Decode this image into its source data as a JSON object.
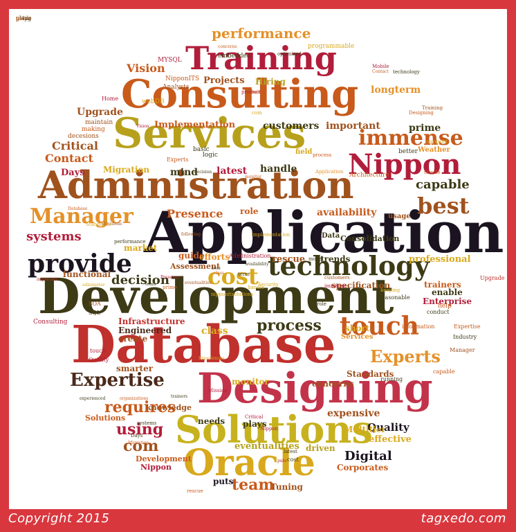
{
  "footer": {
    "copyright": "Copyright 2015",
    "brand": "tagxedo.com"
  },
  "colors": {
    "frame": "#d9373e",
    "canvas": "#ffffff"
  },
  "words": [
    {
      "t": "performance",
      "c": "#e4912a"
    },
    {
      "t": "Training",
      "c": "#b11d3a"
    },
    {
      "t": "Consulting",
      "c": "#c85a1b"
    },
    {
      "t": "Services",
      "c": "#b7a11c"
    },
    {
      "t": "Administration",
      "c": "#a0521d"
    },
    {
      "t": "Application",
      "c": "#1b1420"
    },
    {
      "t": "Development",
      "c": "#3d3a16"
    },
    {
      "t": "Database",
      "c": "#c0302c"
    },
    {
      "t": "Designing",
      "c": "#c2334a"
    },
    {
      "t": "Solutions",
      "c": "#c7b21e"
    },
    {
      "t": "Oracle",
      "c": "#d8a91c"
    },
    {
      "t": "technology",
      "c": "#3d3a16"
    },
    {
      "t": "touch",
      "c": "#c85a1b"
    },
    {
      "t": "Nippon",
      "c": "#b11d3a"
    },
    {
      "t": "immense",
      "c": "#c85a1b"
    },
    {
      "t": "best",
      "c": "#a0521d"
    },
    {
      "t": "capable",
      "c": "#3d3a16"
    },
    {
      "t": "Manager",
      "c": "#e4912a"
    },
    {
      "t": "provide",
      "c": "#1b1420"
    },
    {
      "t": "cost",
      "c": "#d8a91c"
    },
    {
      "t": "Expertise",
      "c": "#4a2a1a"
    },
    {
      "t": "requires",
      "c": "#c85a1b"
    },
    {
      "t": "using",
      "c": "#b11d3a"
    },
    {
      "t": "com",
      "c": "#a0521d"
    },
    {
      "t": "team",
      "c": "#c85a1b"
    },
    {
      "t": "Experts",
      "c": "#e4912a"
    },
    {
      "t": "process",
      "c": "#3d3a16"
    },
    {
      "t": "systems",
      "c": "#b11d3a"
    },
    {
      "t": "decision",
      "c": "#3d3a16"
    },
    {
      "t": "Presence",
      "c": "#c85a1b"
    },
    {
      "t": "availability",
      "c": "#c85a1b"
    },
    {
      "t": "Vision",
      "c": "#c85a1b"
    },
    {
      "t": "Projects",
      "c": "#a0521d"
    },
    {
      "t": "Hiring",
      "c": "#b7a11c"
    },
    {
      "t": "longterm",
      "c": "#e4912a"
    },
    {
      "t": "customers",
      "c": "#3d3a16"
    },
    {
      "t": "important",
      "c": "#a0521d"
    },
    {
      "t": "prime",
      "c": "#3d3a16"
    },
    {
      "t": "Upgrade",
      "c": "#a0521d"
    },
    {
      "t": "Implementation",
      "c": "#c85a1b"
    },
    {
      "t": "Critical",
      "c": "#a0521d"
    },
    {
      "t": "Contact",
      "c": "#c85a1b"
    },
    {
      "t": "Migration",
      "c": "#d8a91c"
    },
    {
      "t": "mind",
      "c": "#3d3a16"
    },
    {
      "t": "latest",
      "c": "#b11d3a"
    },
    {
      "t": "handle",
      "c": "#3d3a16"
    },
    {
      "t": "Days",
      "c": "#b11d3a"
    },
    {
      "t": "role",
      "c": "#c85a1b"
    },
    {
      "t": "market",
      "c": "#d8a91c"
    },
    {
      "t": "trends",
      "c": "#3d3a16"
    },
    {
      "t": "rescue",
      "c": "#a0521d"
    },
    {
      "t": "professional",
      "c": "#d8a91c"
    },
    {
      "t": "guide",
      "c": "#c85a1b"
    },
    {
      "t": "efforts",
      "c": "#e4912a"
    },
    {
      "t": "Consolidation",
      "c": "#3d3a16"
    },
    {
      "t": "Assessment",
      "c": "#a0521d"
    },
    {
      "t": "functional",
      "c": "#a0521d"
    },
    {
      "t": "trainers",
      "c": "#c85a1b"
    },
    {
      "t": "Enterprise",
      "c": "#b11d3a"
    },
    {
      "t": "enable",
      "c": "#3d3a16"
    },
    {
      "t": "specification",
      "c": "#a0521d"
    },
    {
      "t": "Infrastructure",
      "c": "#c0302c"
    },
    {
      "t": "Engineered",
      "c": "#4a2a1a"
    },
    {
      "t": "class",
      "c": "#d8a91c"
    },
    {
      "t": "short",
      "c": "#d8a91c"
    },
    {
      "t": "Services",
      "c": "#e4912a"
    },
    {
      "t": "Standards",
      "c": "#a0521d"
    },
    {
      "t": "monitor",
      "c": "#d8a91c"
    },
    {
      "t": "concerns",
      "c": "#a0521d"
    },
    {
      "t": "Quality",
      "c": "#1b1420"
    },
    {
      "t": "Digital",
      "c": "#1b1420"
    },
    {
      "t": "Multitier",
      "c": "#d8a91c"
    },
    {
      "t": "expensive",
      "c": "#a0521d"
    },
    {
      "t": "effective",
      "c": "#d8a91c"
    },
    {
      "t": "eventualities",
      "c": "#b7a11c"
    },
    {
      "t": "driven",
      "c": "#b7a11c"
    },
    {
      "t": "Corporates",
      "c": "#c85a1b"
    },
    {
      "t": "needs",
      "c": "#3d3a16"
    },
    {
      "t": "plays",
      "c": "#3d3a16"
    },
    {
      "t": "Tuning",
      "c": "#a0521d"
    },
    {
      "t": "puts",
      "c": "#1b1420"
    },
    {
      "t": "create",
      "c": "#a0521d"
    },
    {
      "t": "smarter",
      "c": "#a0521d"
    },
    {
      "t": "knowledge",
      "c": "#a0521d"
    },
    {
      "t": "Solutions",
      "c": "#c85a1b"
    },
    {
      "t": "Development",
      "c": "#c85a1b"
    },
    {
      "t": "Nippon",
      "c": "#b11d3a"
    },
    {
      "t": "Consulting",
      "c": "#b11d3a"
    },
    {
      "t": "Architecture",
      "c": "#c85a1b"
    },
    {
      "t": "usage",
      "c": "#a0521d"
    },
    {
      "t": "Data",
      "c": "#3d3a16"
    },
    {
      "t": "MYSQL",
      "c": "#b11d3a"
    },
    {
      "t": "NipponITS",
      "c": "#c85a1b"
    },
    {
      "t": "Analysts",
      "c": "#a0521d"
    },
    {
      "t": "webDB",
      "c": "#d8a91c"
    },
    {
      "t": "Home",
      "c": "#b11d3a"
    },
    {
      "t": "maintain",
      "c": "#a0521d"
    },
    {
      "t": "embedded",
      "c": "#3d3a16"
    },
    {
      "t": "programmable",
      "c": "#d8a91c"
    },
    {
      "t": "optimized",
      "c": "#3d3a16"
    },
    {
      "t": "decesions",
      "c": "#a0521d"
    },
    {
      "t": "making",
      "c": "#c85a1b"
    },
    {
      "t": "Mobile",
      "c": "#b11d3a"
    },
    {
      "t": "Contact",
      "c": "#c85a1b"
    },
    {
      "t": "technology",
      "c": "#3d3a16"
    },
    {
      "t": "Training",
      "c": "#a0521d"
    },
    {
      "t": "Designing",
      "c": "#c85a1b"
    },
    {
      "t": "Weather",
      "c": "#e4912a"
    },
    {
      "t": "support",
      "c": "#d8a91c"
    },
    {
      "t": "better",
      "c": "#3d3a16"
    },
    {
      "t": "reasonable",
      "c": "#3d3a16"
    },
    {
      "t": "information",
      "c": "#c85a1b"
    },
    {
      "t": "conduct",
      "c": "#3d3a16"
    },
    {
      "t": "help",
      "c": "#c85a1b"
    },
    {
      "t": "Manager",
      "c": "#a0521d"
    },
    {
      "t": "Expertise",
      "c": "#c85a1b"
    },
    {
      "t": "Industry",
      "c": "#3d3a16"
    },
    {
      "t": "SQL",
      "c": "#3d3a16"
    },
    {
      "t": "SOA",
      "c": "#a0521d"
    },
    {
      "t": "touch",
      "c": "#b11d3a"
    },
    {
      "t": "Quality",
      "c": "#b11d3a"
    },
    {
      "t": "basic",
      "c": "#3d3a16"
    },
    {
      "t": "logic",
      "c": "#3d3a16"
    },
    {
      "t": "Experts",
      "c": "#c85a1b"
    },
    {
      "t": "field",
      "c": "#d8a91c"
    },
    {
      "t": "process",
      "c": "#c85a1b"
    },
    {
      "t": "Application",
      "c": "#e4912a"
    },
    {
      "t": "Oracle",
      "c": "#c85a1b"
    },
    {
      "t": "cost",
      "c": "#3d3a16"
    },
    {
      "t": "Nippon",
      "c": "#b11d3a"
    },
    {
      "t": "Critical",
      "c": "#b11d3a"
    },
    {
      "t": "Mission",
      "c": "#b11d3a"
    },
    {
      "t": "Days",
      "c": "#3d3a16"
    },
    {
      "t": "Migration",
      "c": "#c85a1b"
    },
    {
      "t": "systems",
      "c": "#3d3a16"
    },
    {
      "t": "capable",
      "c": "#c85a1b"
    },
    {
      "t": "running",
      "c": "#3d3a16"
    },
    {
      "t": "keeping",
      "c": "#d8a91c"
    },
    {
      "t": "Upgrade",
      "c": "#c0302c"
    },
    {
      "t": "decisions",
      "c": "#a0521d"
    },
    {
      "t": "Database",
      "c": "#c85a1b"
    },
    {
      "t": "Standards",
      "c": "#d8a91c"
    },
    {
      "t": "performance",
      "c": "#3d3a16"
    },
    {
      "t": "nipponitsolutions",
      "c": "#d8a91c"
    },
    {
      "t": "Implementation",
      "c": "#d8a91c"
    },
    {
      "t": "handle",
      "c": "#d8a91c"
    },
    {
      "t": "Security",
      "c": "#d8a91c"
    },
    {
      "t": "Presence",
      "c": "#b11d3a"
    },
    {
      "t": "eventualities",
      "c": "#a0521d"
    },
    {
      "t": "important",
      "c": "#c0302c"
    },
    {
      "t": "administer",
      "c": "#d8a91c"
    },
    {
      "t": "following",
      "c": "#a0521d"
    },
    {
      "t": "Experiences",
      "c": "#d8a91c"
    },
    {
      "t": "trainers",
      "c": "#3d3a16"
    },
    {
      "t": "monitor",
      "c": "#c85a1b"
    },
    {
      "t": "best",
      "c": "#3d3a16"
    },
    {
      "t": "class",
      "c": "#c85a1b"
    },
    {
      "t": "team",
      "c": "#3d3a16"
    },
    {
      "t": "experienced",
      "c": "#3d3a16"
    },
    {
      "t": "organizations",
      "c": "#c85a1b"
    },
    {
      "t": "concerns",
      "c": "#c85a1b"
    },
    {
      "t": "mind",
      "c": "#c85a1b"
    },
    {
      "t": "com",
      "c": "#d8a91c"
    },
    {
      "t": "Vision",
      "c": "#b11d3a"
    },
    {
      "t": "Projects",
      "c": "#c85a1b"
    },
    {
      "t": "product",
      "c": "#b11d3a"
    },
    {
      "t": "decision",
      "c": "#3d3a16"
    },
    {
      "t": "model",
      "c": "#3d3a16"
    },
    {
      "t": "immense",
      "c": "#b11d3a"
    },
    {
      "t": "customers",
      "c": "#a0521d"
    },
    {
      "t": "term",
      "c": "#3d3a16"
    },
    {
      "t": "availability",
      "c": "#3d3a16"
    },
    {
      "t": "rescue",
      "c": "#c85a1b"
    },
    {
      "t": "prime",
      "c": "#c85a1b"
    },
    {
      "t": "role",
      "c": "#3d3a16"
    },
    {
      "t": "latest",
      "c": "#3d3a16"
    },
    {
      "t": "puts",
      "c": "#b11d3a"
    },
    {
      "t": "Administration",
      "c": "#b11d3a"
    },
    {
      "t": "using",
      "c": "#3d3a16"
    },
    {
      "t": "plays",
      "c": "#3d3a16"
    },
    {
      "t": "guide",
      "c": "#c85a1b"
    }
  ]
}
